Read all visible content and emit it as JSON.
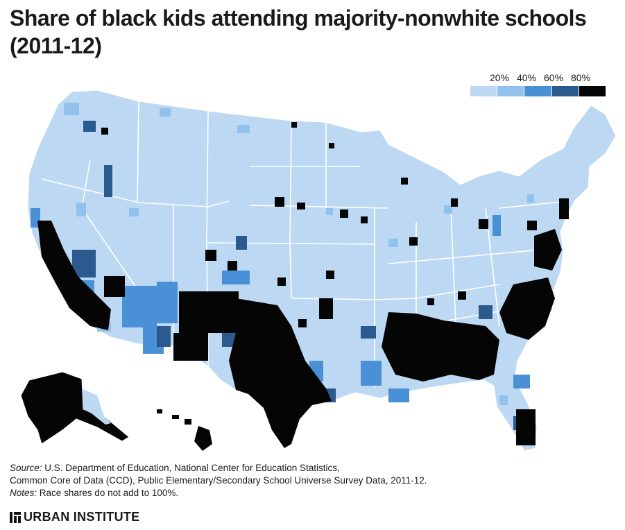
{
  "title_line1": "Share of black kids attending majority-nonwhite schools",
  "title_line2": "(2011-12)",
  "legend": {
    "labels": [
      "20%",
      "40%",
      "60%",
      "80%"
    ],
    "colors": [
      "#bcd8f2",
      "#90c2ec",
      "#4a90d6",
      "#2b5a8e",
      "#050505"
    ]
  },
  "map": {
    "base_color": "#bcd8f2",
    "border_color": "#ffffff"
  },
  "source": {
    "source_label": "Source:",
    "source_line1": "U.S. Department of Education, National Center for Education Statistics,",
    "source_line2": "Common Core of Data (CCD), Public Elementary/Secondary School Universe Survey Data, 2011-12.",
    "notes_label": "Notes:",
    "notes_text": "Race shares do not add to 100%."
  },
  "brand": {
    "name": "URBAN INSTITUTE"
  }
}
